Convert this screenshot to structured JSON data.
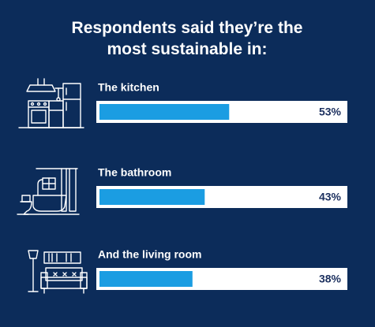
{
  "chart_data": {
    "type": "bar",
    "orientation": "horizontal",
    "title": "Respondents said they’re the most sustainable in:",
    "categories": [
      "The kitchen",
      "The bathroom",
      "And the living room"
    ],
    "values": [
      53,
      43,
      38
    ],
    "value_labels": [
      "53%",
      "43%",
      "38%"
    ],
    "color": "#1b9de2",
    "xlim": [
      0,
      100
    ]
  }
}
